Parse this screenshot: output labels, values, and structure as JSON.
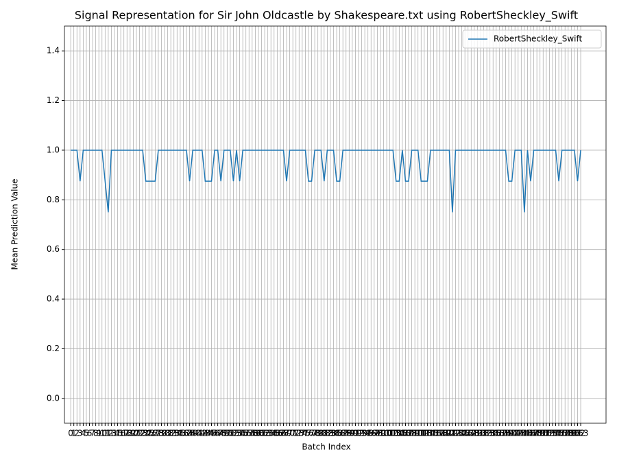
{
  "chart_data": {
    "type": "line",
    "title": "Signal Representation for Sir John Oldcastle by Shakespeare.txt using RobertSheckley_Swift",
    "xlabel": "Batch Index",
    "ylabel": "Mean Prediction Value",
    "x": [
      0,
      1,
      2,
      3,
      4,
      5,
      6,
      7,
      8,
      9,
      10,
      11,
      12,
      13,
      14,
      15,
      16,
      17,
      18,
      19,
      20,
      21,
      22,
      23,
      24,
      25,
      26,
      27,
      28,
      29,
      30,
      31,
      32,
      33,
      34,
      35,
      36,
      37,
      38,
      39,
      40,
      41,
      42,
      43,
      44,
      45,
      46,
      47,
      48,
      49,
      50,
      51,
      52,
      53,
      54,
      55,
      56,
      57,
      58,
      59,
      60,
      61,
      62,
      63,
      64,
      65,
      66,
      67,
      68,
      69,
      70,
      71,
      72,
      73,
      74,
      75,
      76,
      77,
      78,
      79,
      80,
      81,
      82,
      83,
      84,
      85,
      86,
      87,
      88,
      89,
      90,
      91,
      92,
      93,
      94,
      95,
      96,
      97,
      98,
      99,
      100,
      101,
      102,
      103,
      104,
      105,
      106,
      107,
      108,
      109,
      110,
      111,
      112,
      113,
      114,
      115,
      116,
      117,
      118,
      119,
      120,
      121,
      122,
      123,
      124,
      125,
      126,
      127,
      128,
      129,
      130,
      131,
      132,
      133,
      134,
      135,
      136,
      137,
      138,
      139,
      140,
      141,
      142,
      143,
      144,
      145,
      146,
      147,
      148,
      149,
      150,
      151,
      152,
      153,
      154,
      155,
      156,
      157,
      158,
      159,
      160,
      161,
      162,
      163
    ],
    "series": [
      {
        "name": "RobertSheckley_Swift",
        "color": "#1f77b4",
        "values": [
          1,
          1,
          1,
          0.875,
          1,
          1,
          1,
          1,
          1,
          1,
          1,
          0.875,
          0.75,
          1,
          1,
          1,
          1,
          1,
          1,
          1,
          1,
          1,
          1,
          1,
          0.875,
          0.875,
          0.875,
          0.875,
          1,
          1,
          1,
          1,
          1,
          1,
          1,
          1,
          1,
          1,
          0.875,
          1,
          1,
          1,
          1,
          0.875,
          0.875,
          0.875,
          1,
          1,
          0.875,
          1,
          1,
          1,
          0.875,
          1,
          0.875,
          1,
          1,
          1,
          1,
          1,
          1,
          1,
          1,
          1,
          1,
          1,
          1,
          1,
          1,
          0.875,
          1,
          1,
          1,
          1,
          1,
          1,
          0.875,
          0.875,
          1,
          1,
          1,
          0.875,
          1,
          1,
          1,
          0.875,
          0.875,
          1,
          1,
          1,
          1,
          1,
          1,
          1,
          1,
          1,
          1,
          1,
          1,
          1,
          1,
          1,
          1,
          1,
          0.875,
          0.875,
          1,
          0.875,
          0.875,
          1,
          1,
          1,
          0.875,
          0.875,
          0.875,
          1,
          1,
          1,
          1,
          1,
          1,
          1,
          0.75,
          1,
          1,
          1,
          1,
          1,
          1,
          1,
          1,
          1,
          1,
          1,
          1,
          1,
          1,
          1,
          1,
          1,
          0.875,
          0.875,
          1,
          1,
          1,
          0.75,
          1,
          0.875,
          1,
          1,
          1,
          1,
          1,
          1,
          1,
          1,
          0.875,
          1,
          1,
          1,
          1,
          1,
          0.875,
          1
        ]
      }
    ],
    "xlim": [
      -2,
      171.1
    ],
    "xticks": [
      0,
      1,
      2,
      3,
      4,
      5,
      6,
      7,
      8,
      9,
      10,
      11,
      12,
      13,
      14,
      15,
      16,
      17,
      18,
      19,
      20,
      21,
      22,
      23,
      24,
      25,
      26,
      27,
      28,
      29,
      30,
      31,
      32,
      33,
      34,
      35,
      36,
      37,
      38,
      39,
      40,
      41,
      42,
      43,
      44,
      45,
      46,
      47,
      48,
      49,
      50,
      51,
      52,
      53,
      54,
      55,
      56,
      57,
      58,
      59,
      60,
      61,
      62,
      63,
      64,
      65,
      66,
      67,
      68,
      69,
      70,
      71,
      72,
      73,
      74,
      75,
      76,
      77,
      78,
      79,
      80,
      81,
      82,
      83,
      84,
      85,
      86,
      87,
      88,
      89,
      90,
      91,
      92,
      93,
      94,
      95,
      96,
      97,
      98,
      99,
      100,
      101,
      102,
      103,
      104,
      105,
      106,
      107,
      108,
      109,
      110,
      111,
      112,
      113,
      114,
      115,
      116,
      117,
      118,
      119,
      120,
      121,
      122,
      123,
      124,
      125,
      126,
      127,
      128,
      129,
      130,
      131,
      132,
      133,
      134,
      135,
      136,
      137,
      138,
      139,
      140,
      141,
      142,
      143,
      144,
      145,
      146,
      147,
      148,
      149,
      150,
      151,
      152,
      153,
      154,
      155,
      156,
      157,
      158,
      159,
      160,
      161,
      162,
      163
    ],
    "ylim": [
      -0.1,
      1.5
    ],
    "yticks": [
      {
        "value": 0,
        "label": "0.0"
      },
      0.2,
      0.4,
      0.6,
      0.8,
      {
        "value": 1,
        "label": "1.0"
      },
      1.2,
      1.4
    ],
    "grid": true,
    "legend": "upper right"
  }
}
